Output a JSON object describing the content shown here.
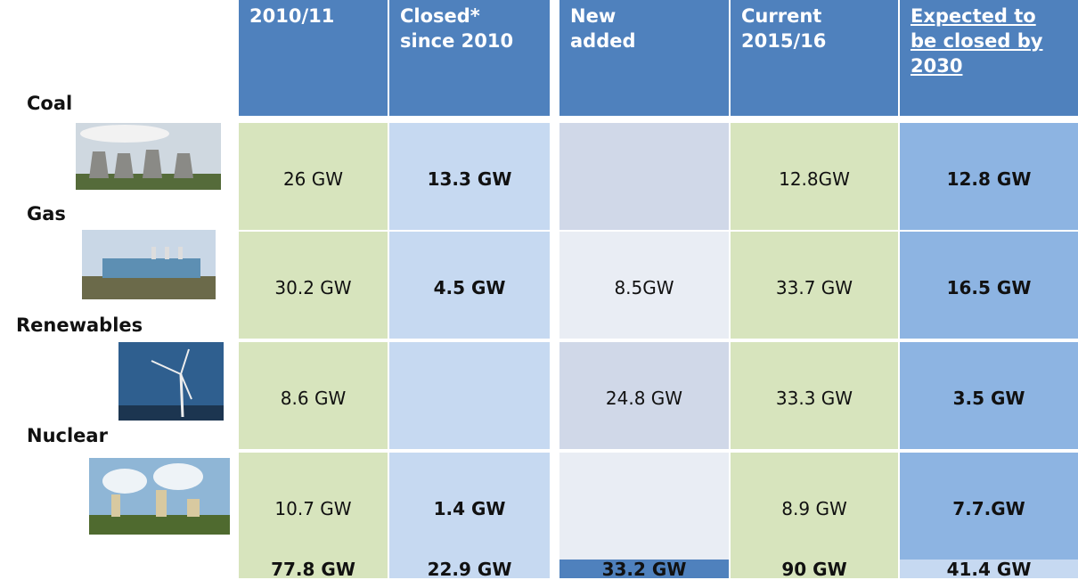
{
  "table": {
    "header": [
      [
        "2010/11"
      ],
      [
        "Closed*",
        "since 2010"
      ],
      [
        "New",
        "added"
      ],
      [
        "Current",
        "2015/16"
      ],
      [
        "Expected to",
        "be closed by",
        "2030"
      ]
    ],
    "rows": [
      {
        "label": "Coal",
        "cells": [
          "26 GW",
          "13.3 GW",
          null,
          "12.8GW",
          "12.8 GW"
        ]
      },
      {
        "label": "Gas",
        "cells": [
          "30.2 GW",
          "4.5 GW",
          "8.5GW",
          "33.7 GW",
          "16.5 GW"
        ]
      },
      {
        "label": "Renewables",
        "cells": [
          "8.6 GW",
          null,
          "24.8 GW",
          "33.3 GW",
          "3.5 GW"
        ]
      },
      {
        "label": "Nuclear",
        "cells": [
          "10.7 GW",
          "1.4 GW",
          null,
          "8.9 GW",
          "7.7.GW"
        ]
      }
    ],
    "totals": [
      "77.8 GW",
      "22.9 GW",
      "33.2 GW",
      "90 GW",
      "41.4 GW"
    ]
  }
}
